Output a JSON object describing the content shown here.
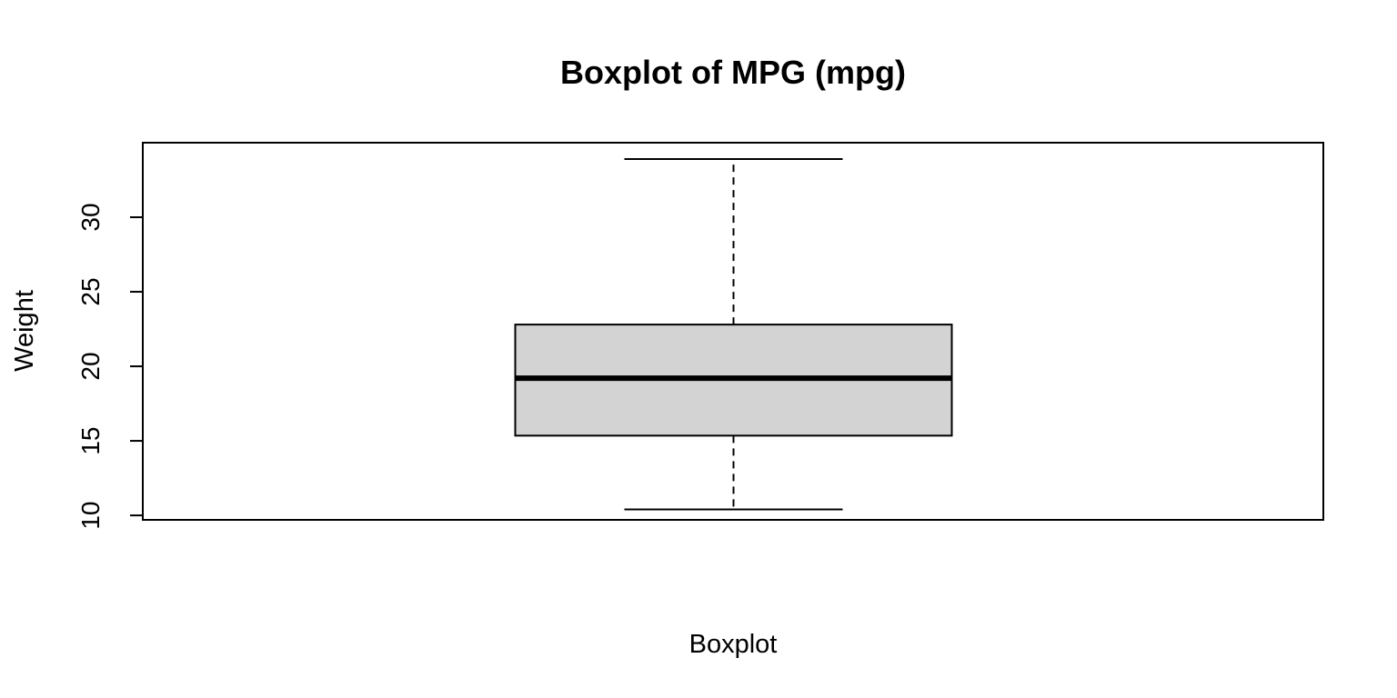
{
  "chart_data": {
    "type": "box",
    "title": "Boxplot of MPG (mpg)",
    "xlabel": "Boxplot",
    "ylabel": "Weight",
    "ylim": [
      9.7,
      35.0
    ],
    "yticks": [
      10,
      15,
      20,
      25,
      30
    ],
    "ytick_labels": [
      "10",
      "15",
      "20",
      "25",
      "30"
    ],
    "series": [
      {
        "min": 10.4,
        "q1": 15.35,
        "median": 19.2,
        "q3": 22.8,
        "max": 33.9
      }
    ],
    "box_fill": "#d3d3d3",
    "line_color": "#000000",
    "grid": false,
    "legend": "none"
  }
}
